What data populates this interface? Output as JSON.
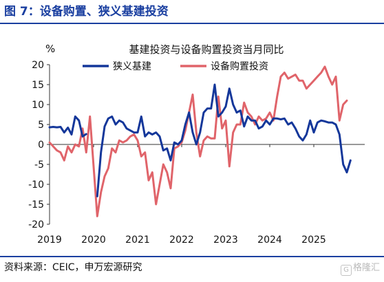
{
  "header": {
    "figure_title": "图 7：设备购置、狭义基建投资"
  },
  "footer": {
    "source": "资料来源：CEIC，申万宏源研究",
    "watermark_glyph": "G",
    "watermark_text": "格隆汇"
  },
  "colors": {
    "brand_blue": "#1a3fa0",
    "infra_series": "#14379a",
    "equipment_series": "#e0646a",
    "axis": "#333333"
  },
  "chart_data": {
    "type": "line",
    "title": "基建投资与设备购置投资当月同比",
    "ylabel": "%",
    "xlabel": "",
    "ylim": [
      -20,
      20
    ],
    "yticks": [
      20,
      15,
      10,
      5,
      0,
      -5,
      -10,
      -15,
      -20
    ],
    "x_tick_labels": [
      "2019",
      "2020",
      "2021",
      "2022",
      "2023",
      "2024",
      "2025"
    ],
    "grid": false,
    "legend_position": "top",
    "series": [
      {
        "name": "狭义基建",
        "color": "#14379a",
        "points": [
          [
            "2019-01",
            4.3
          ],
          [
            "2019-02",
            4.4
          ],
          [
            "2019-03",
            4.3
          ],
          [
            "2019-04",
            4.4
          ],
          [
            "2019-05",
            3.0
          ],
          [
            "2019-06",
            4.2
          ],
          [
            "2019-07",
            2.5
          ],
          [
            "2019-08",
            7.0
          ],
          [
            "2019-09",
            6.0
          ],
          [
            "2019-10",
            2.0
          ],
          [
            "2019-11",
            2.6
          ],
          [
            "2020-02",
            -13.0
          ],
          [
            "2020-03",
            -2.0
          ],
          [
            "2020-04",
            4.5
          ],
          [
            "2020-05",
            6.5
          ],
          [
            "2020-06",
            7.0
          ],
          [
            "2020-07",
            5.0
          ],
          [
            "2020-08",
            6.0
          ],
          [
            "2020-09",
            5.5
          ],
          [
            "2020-10",
            4.0
          ],
          [
            "2020-11",
            3.5
          ],
          [
            "2020-12",
            3.0
          ],
          [
            "2021-01",
            3.0
          ],
          [
            "2021-02",
            7.0
          ],
          [
            "2021-03",
            2.0
          ],
          [
            "2021-04",
            3.0
          ],
          [
            "2021-05",
            2.5
          ],
          [
            "2021-06",
            3.0
          ],
          [
            "2021-07",
            2.0
          ],
          [
            "2021-08",
            -1.5
          ],
          [
            "2021-09",
            -1.0
          ],
          [
            "2021-10",
            -4.0
          ],
          [
            "2021-11",
            0.5
          ],
          [
            "2021-12",
            0.0
          ],
          [
            "2022-01",
            1.0
          ],
          [
            "2022-02",
            5.0
          ],
          [
            "2022-03",
            8.0
          ],
          [
            "2022-04",
            3.0
          ],
          [
            "2022-05",
            0.0
          ],
          [
            "2022-06",
            3.0
          ],
          [
            "2022-07",
            8.0
          ],
          [
            "2022-08",
            9.0
          ],
          [
            "2022-09",
            9.0
          ],
          [
            "2022-10",
            15.0
          ],
          [
            "2022-11",
            7.0
          ],
          [
            "2022-12",
            8.0
          ],
          [
            "2023-01",
            9.5
          ],
          [
            "2023-02",
            14.0
          ],
          [
            "2023-03",
            10.0
          ],
          [
            "2023-04",
            8.0
          ],
          [
            "2023-05",
            8.5
          ],
          [
            "2023-06",
            4.5
          ],
          [
            "2023-07",
            7.0
          ],
          [
            "2023-08",
            6.0
          ],
          [
            "2023-09",
            6.0
          ],
          [
            "2023-10",
            4.0
          ],
          [
            "2023-11",
            4.5
          ],
          [
            "2023-12",
            6.0
          ],
          [
            "2024-01",
            5.0
          ],
          [
            "2024-02",
            6.5
          ],
          [
            "2024-03",
            6.5
          ],
          [
            "2024-04",
            6.3
          ],
          [
            "2024-05",
            6.5
          ],
          [
            "2024-06",
            5.0
          ],
          [
            "2024-07",
            5.5
          ],
          [
            "2024-08",
            4.0
          ],
          [
            "2024-09",
            2.0
          ],
          [
            "2024-10",
            1.0
          ],
          [
            "2024-11",
            2.5
          ],
          [
            "2024-12",
            6.0
          ],
          [
            "2025-01",
            3.0
          ],
          [
            "2025-02",
            5.5
          ],
          [
            "2025-03",
            6.0
          ],
          [
            "2025-04",
            5.8
          ],
          [
            "2025-05",
            5.5
          ],
          [
            "2025-06",
            5.5
          ],
          [
            "2025-07",
            5.0
          ],
          [
            "2025-08",
            2.5
          ],
          [
            "2025-09",
            -5.0
          ],
          [
            "2025-10",
            -7.0
          ],
          [
            "2025-11",
            -4.0
          ]
        ]
      },
      {
        "name": "设备购置投资",
        "color": "#e0646a",
        "points": [
          [
            "2019-01",
            0.5
          ],
          [
            "2019-02",
            -0.5
          ],
          [
            "2019-03",
            -1.5
          ],
          [
            "2019-04",
            -2.0
          ],
          [
            "2019-05",
            -4.0
          ],
          [
            "2019-06",
            -0.5
          ],
          [
            "2019-07",
            -2.0
          ],
          [
            "2019-08",
            0.0
          ],
          [
            "2019-09",
            -0.5
          ],
          [
            "2019-10",
            4.0
          ],
          [
            "2019-11",
            -2.0
          ],
          [
            "2019-12",
            7.0
          ],
          [
            "2020-02",
            -18.0
          ],
          [
            "2020-03",
            -12.0
          ],
          [
            "2020-04",
            -8.0
          ],
          [
            "2020-05",
            -6.0
          ],
          [
            "2020-06",
            -1.0
          ],
          [
            "2020-07",
            -2.0
          ],
          [
            "2020-08",
            1.0
          ],
          [
            "2020-09",
            0.5
          ],
          [
            "2020-10",
            1.0
          ],
          [
            "2020-11",
            2.0
          ],
          [
            "2020-12",
            2.5
          ],
          [
            "2021-01",
            1.0
          ],
          [
            "2021-02",
            -3.0
          ],
          [
            "2021-03",
            -2.0
          ],
          [
            "2021-04",
            -9.0
          ],
          [
            "2021-05",
            -7.0
          ],
          [
            "2021-06",
            -15.0
          ],
          [
            "2021-07",
            -10.0
          ],
          [
            "2021-08",
            -5.0
          ],
          [
            "2021-09",
            -7.0
          ],
          [
            "2021-10",
            -11.0
          ],
          [
            "2021-11",
            -1.0
          ],
          [
            "2021-12",
            -0.5
          ],
          [
            "2022-01",
            0.5
          ],
          [
            "2022-02",
            3.5
          ],
          [
            "2022-03",
            8.0
          ],
          [
            "2022-04",
            12.5
          ],
          [
            "2022-05",
            3.0
          ],
          [
            "2022-06",
            -3.0
          ],
          [
            "2022-07",
            1.0
          ],
          [
            "2022-08",
            2.0
          ],
          [
            "2022-09",
            1.5
          ],
          [
            "2022-10",
            1.5
          ],
          [
            "2022-11",
            12.0
          ],
          [
            "2022-12",
            4.0
          ],
          [
            "2023-01",
            6.0
          ],
          [
            "2023-02",
            -5.5
          ],
          [
            "2023-03",
            3.0
          ],
          [
            "2023-04",
            5.0
          ],
          [
            "2023-05",
            5.0
          ],
          [
            "2023-06",
            10.5
          ],
          [
            "2023-07",
            8.0
          ],
          [
            "2023-08",
            7.0
          ],
          [
            "2023-09",
            5.0
          ],
          [
            "2023-10",
            7.0
          ],
          [
            "2023-11",
            6.0
          ],
          [
            "2023-12",
            6.5
          ],
          [
            "2024-01",
            8.0
          ],
          [
            "2024-02",
            6.0
          ],
          [
            "2024-03",
            12.0
          ],
          [
            "2024-04",
            17.0
          ],
          [
            "2024-05",
            18.0
          ],
          [
            "2024-06",
            16.5
          ],
          [
            "2024-07",
            17.0
          ],
          [
            "2024-08",
            17.5
          ],
          [
            "2024-09",
            16.0
          ],
          [
            "2024-10",
            16.0
          ],
          [
            "2024-11",
            14.0
          ],
          [
            "2024-12",
            15.0
          ],
          [
            "2025-01",
            16.0
          ],
          [
            "2025-02",
            17.0
          ],
          [
            "2025-03",
            18.0
          ],
          [
            "2025-04",
            19.5
          ],
          [
            "2025-05",
            17.0
          ],
          [
            "2025-06",
            15.0
          ],
          [
            "2025-07",
            17.0
          ],
          [
            "2025-08",
            6.0
          ],
          [
            "2025-09",
            10.0
          ],
          [
            "2025-10",
            11.0
          ]
        ]
      }
    ]
  }
}
